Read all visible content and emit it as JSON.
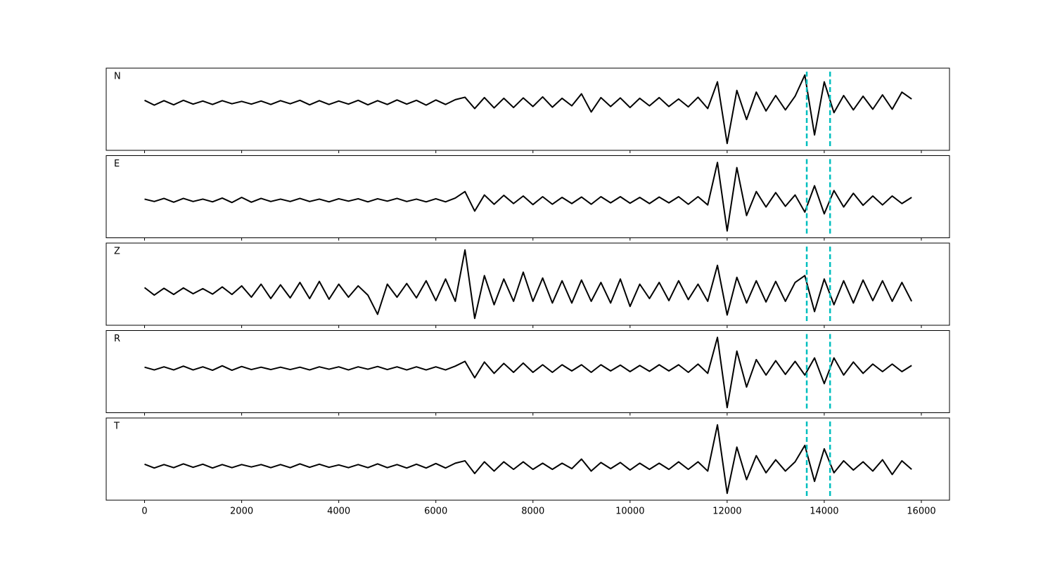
{
  "chart_data": {
    "type": "line",
    "x": [
      0,
      200,
      400,
      600,
      800,
      1000,
      1200,
      1400,
      1600,
      1800,
      2000,
      2200,
      2400,
      2600,
      2800,
      3000,
      3200,
      3400,
      3600,
      3800,
      4000,
      4200,
      4400,
      4600,
      4800,
      5000,
      5200,
      5400,
      5600,
      5800,
      6000,
      6200,
      6400,
      6600,
      6800,
      7000,
      7200,
      7400,
      7600,
      7800,
      8000,
      8200,
      8400,
      8600,
      8800,
      9000,
      9200,
      9400,
      9600,
      9800,
      10000,
      10200,
      10400,
      10600,
      10800,
      11000,
      11200,
      11400,
      11600,
      11800,
      12000,
      12200,
      12400,
      12600,
      12800,
      13000,
      13200,
      13400,
      13600,
      13800,
      14000,
      14200,
      14400,
      14600,
      14800,
      15000,
      15200,
      15400,
      15600,
      15800
    ],
    "xlim": [
      -790,
      16580
    ],
    "xticks": [
      0,
      2000,
      4000,
      6000,
      8000,
      10000,
      12000,
      14000,
      16000
    ],
    "vlines": [
      13640,
      14120
    ],
    "vline_color": "#00bfbf",
    "series": [
      {
        "name": "N",
        "color": "#000000",
        "ylim": [
          -1.4,
          1.0
        ],
        "values": [
          0.06,
          -0.08,
          0.05,
          -0.07,
          0.06,
          -0.05,
          0.04,
          -0.06,
          0.05,
          -0.04,
          0.03,
          -0.05,
          0.04,
          -0.06,
          0.05,
          -0.04,
          0.06,
          -0.07,
          0.05,
          -0.06,
          0.04,
          -0.05,
          0.06,
          -0.07,
          0.05,
          -0.06,
          0.07,
          -0.05,
          0.06,
          -0.08,
          0.07,
          -0.06,
          0.08,
          0.15,
          -0.18,
          0.14,
          -0.16,
          0.12,
          -0.15,
          0.13,
          -0.12,
          0.16,
          -0.14,
          0.12,
          -0.1,
          0.25,
          -0.28,
          0.14,
          -0.12,
          0.13,
          -0.15,
          0.12,
          -0.1,
          0.14,
          -0.12,
          0.1,
          -0.13,
          0.15,
          -0.18,
          0.6,
          -1.2,
          0.35,
          -0.5,
          0.3,
          -0.25,
          0.2,
          -0.22,
          0.18,
          0.8,
          -0.95,
          0.6,
          -0.3,
          0.2,
          -0.22,
          0.18,
          -0.2,
          0.22,
          -0.2,
          0.3,
          0.1
        ]
      },
      {
        "name": "E",
        "color": "#000000",
        "ylim": [
          -1.1,
          1.3
        ],
        "values": [
          0.03,
          -0.04,
          0.05,
          -0.06,
          0.05,
          -0.04,
          0.03,
          -0.05,
          0.06,
          -0.07,
          0.08,
          -0.06,
          0.05,
          -0.04,
          0.03,
          -0.04,
          0.05,
          -0.04,
          0.03,
          -0.05,
          0.04,
          -0.03,
          0.04,
          -0.05,
          0.04,
          -0.03,
          0.05,
          -0.04,
          0.03,
          -0.05,
          0.04,
          -0.05,
          0.06,
          0.25,
          -0.32,
          0.15,
          -0.12,
          0.14,
          -0.1,
          0.12,
          -0.13,
          0.1,
          -0.12,
          0.08,
          -0.1,
          0.09,
          -0.12,
          0.1,
          -0.08,
          0.1,
          -0.09,
          0.08,
          -0.1,
          0.09,
          -0.08,
          0.1,
          -0.12,
          0.1,
          -0.14,
          1.1,
          -0.9,
          0.95,
          -0.45,
          0.25,
          -0.2,
          0.22,
          -0.18,
          0.15,
          -0.35,
          0.42,
          -0.4,
          0.28,
          -0.2,
          0.2,
          -0.15,
          0.12,
          -0.14,
          0.12,
          -0.1,
          0.08
        ]
      },
      {
        "name": "Z",
        "color": "#000000",
        "ylim": [
          -1.0,
          1.4
        ],
        "values": [
          0.1,
          -0.12,
          0.08,
          -0.1,
          0.09,
          -0.08,
          0.07,
          -0.09,
          0.12,
          -0.1,
          0.15,
          -0.18,
          0.2,
          -0.22,
          0.18,
          -0.2,
          0.25,
          -0.22,
          0.28,
          -0.24,
          0.2,
          -0.18,
          0.15,
          -0.12,
          -0.68,
          0.2,
          -0.18,
          0.22,
          -0.2,
          0.3,
          -0.28,
          0.35,
          -0.3,
          1.2,
          -0.8,
          0.45,
          -0.4,
          0.35,
          -0.3,
          0.55,
          -0.3,
          0.38,
          -0.35,
          0.3,
          -0.35,
          0.32,
          -0.3,
          0.25,
          -0.35,
          0.35,
          -0.45,
          0.2,
          -0.22,
          0.25,
          -0.28,
          0.3,
          -0.25,
          0.2,
          -0.3,
          0.75,
          -0.7,
          0.4,
          -0.35,
          0.3,
          -0.32,
          0.28,
          -0.3,
          0.25,
          0.45,
          -0.6,
          0.35,
          -0.4,
          0.3,
          -0.35,
          0.32,
          -0.28,
          0.3,
          -0.3,
          0.25,
          -0.3
        ]
      },
      {
        "name": "R",
        "color": "#000000",
        "ylim": [
          -1.3,
          1.1
        ],
        "values": [
          0.03,
          -0.05,
          0.04,
          -0.05,
          0.06,
          -0.05,
          0.04,
          -0.06,
          0.07,
          -0.06,
          0.05,
          -0.04,
          0.03,
          -0.04,
          0.03,
          -0.04,
          0.03,
          -0.05,
          0.04,
          -0.03,
          0.04,
          -0.05,
          0.04,
          -0.03,
          0.05,
          -0.04,
          0.04,
          -0.05,
          0.04,
          -0.05,
          0.04,
          -0.05,
          0.06,
          0.2,
          -0.28,
          0.18,
          -0.15,
          0.14,
          -0.12,
          0.15,
          -0.12,
          0.1,
          -0.12,
          0.1,
          -0.08,
          0.1,
          -0.12,
          0.1,
          -0.08,
          0.09,
          -0.1,
          0.08,
          -0.09,
          0.1,
          -0.08,
          0.1,
          -0.12,
          0.12,
          -0.15,
          0.9,
          -1.15,
          0.5,
          -0.55,
          0.25,
          -0.2,
          0.22,
          -0.18,
          0.2,
          -0.2,
          0.3,
          -0.45,
          0.3,
          -0.2,
          0.18,
          -0.15,
          0.12,
          -0.1,
          0.12,
          -0.1,
          0.08
        ]
      },
      {
        "name": "T",
        "color": "#000000",
        "ylim": [
          -1.0,
          1.4
        ],
        "values": [
          0.05,
          -0.06,
          0.04,
          -0.05,
          0.06,
          -0.04,
          0.05,
          -0.06,
          0.04,
          -0.05,
          0.04,
          -0.03,
          0.04,
          -0.05,
          0.04,
          -0.05,
          0.06,
          -0.04,
          0.05,
          -0.04,
          0.03,
          -0.05,
          0.04,
          -0.05,
          0.06,
          -0.05,
          0.04,
          -0.06,
          0.05,
          -0.06,
          0.07,
          -0.06,
          0.08,
          0.15,
          -0.22,
          0.12,
          -0.15,
          0.12,
          -0.1,
          0.12,
          -0.1,
          0.08,
          -0.1,
          0.08,
          -0.08,
          0.2,
          -0.15,
          0.1,
          -0.08,
          0.1,
          -0.12,
          0.08,
          -0.1,
          0.08,
          -0.1,
          0.12,
          -0.1,
          0.12,
          -0.15,
          1.2,
          -0.8,
          0.55,
          -0.4,
          0.3,
          -0.2,
          0.18,
          -0.15,
          0.12,
          0.6,
          -0.45,
          0.5,
          -0.2,
          0.15,
          -0.12,
          0.12,
          -0.15,
          0.18,
          -0.25,
          0.15,
          -0.1
        ]
      }
    ]
  }
}
